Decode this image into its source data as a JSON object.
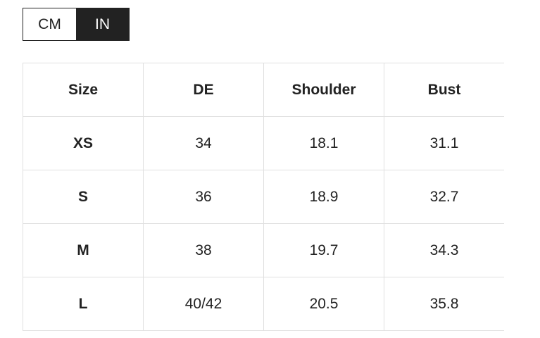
{
  "unit_toggle": {
    "options": [
      "CM",
      "IN"
    ],
    "active": 1
  },
  "table": {
    "header": [
      "Size",
      "DE",
      "Shoulder",
      "Bust"
    ],
    "rows": [
      [
        "XS",
        "34",
        "18.1",
        "31.1"
      ],
      [
        "S",
        "36",
        "18.9",
        "32.7"
      ],
      [
        "M",
        "38",
        "19.7",
        "34.3"
      ],
      [
        "L",
        "40/42",
        "20.5",
        "35.8"
      ]
    ]
  }
}
